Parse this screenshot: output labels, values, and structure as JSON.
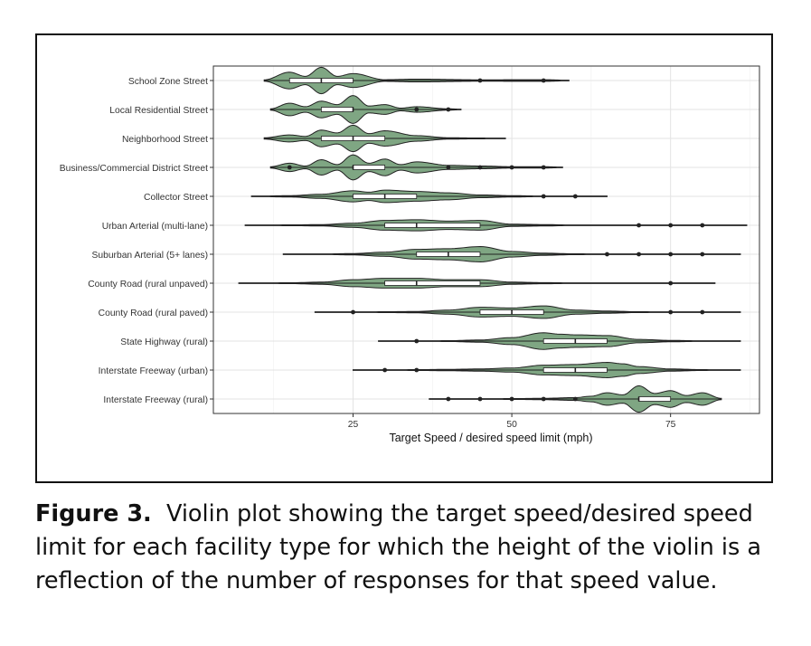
{
  "chart_data": {
    "type": "violin",
    "orientation": "horizontal",
    "xlabel": "Target Speed / desired speed limit (mph)",
    "ylabel": "",
    "xlim": [
      3,
      89
    ],
    "xticks": [
      25,
      50,
      75
    ],
    "grid": true,
    "violin_fill": "#7fa683",
    "categories": [
      {
        "name": "School Zone Street",
        "range": [
          11,
          59
        ],
        "q1": 15,
        "median": 20,
        "q3": 25,
        "density": [
          [
            11,
            0.05
          ],
          [
            15,
            0.6
          ],
          [
            17.5,
            0.3
          ],
          [
            20,
            0.95
          ],
          [
            22.5,
            0.3
          ],
          [
            25,
            0.5
          ],
          [
            30,
            0.06
          ],
          [
            35,
            0.1
          ],
          [
            45,
            0.05
          ],
          [
            55,
            0.06
          ],
          [
            59,
            0.02
          ]
        ],
        "outliers": [
          45,
          55
        ]
      },
      {
        "name": "Local Residential Street",
        "range": [
          12,
          42
        ],
        "q1": 20,
        "median": 25,
        "q3": 25,
        "density": [
          [
            12,
            0.05
          ],
          [
            15,
            0.45
          ],
          [
            17.5,
            0.2
          ],
          [
            20,
            0.6
          ],
          [
            22.5,
            0.35
          ],
          [
            25,
            1.0
          ],
          [
            27.5,
            0.25
          ],
          [
            30,
            0.35
          ],
          [
            32.5,
            0.1
          ],
          [
            35,
            0.2
          ],
          [
            40,
            0.05
          ],
          [
            42,
            0.02
          ]
        ],
        "outliers": [
          35,
          40
        ]
      },
      {
        "name": "Neighborhood Street",
        "range": [
          11,
          49
        ],
        "q1": 20,
        "median": 25,
        "q3": 30,
        "density": [
          [
            11,
            0.05
          ],
          [
            15,
            0.25
          ],
          [
            17.5,
            0.15
          ],
          [
            20,
            0.6
          ],
          [
            22.5,
            0.4
          ],
          [
            25,
            0.95
          ],
          [
            27.5,
            0.35
          ],
          [
            30,
            0.55
          ],
          [
            35,
            0.2
          ],
          [
            40,
            0.05
          ],
          [
            45,
            0.03
          ],
          [
            49,
            0.01
          ]
        ],
        "outliers": []
      },
      {
        "name": "Business/Commercial District Street",
        "range": [
          12,
          58
        ],
        "q1": 25,
        "median": 25,
        "q3": 30,
        "density": [
          [
            12,
            0.05
          ],
          [
            15,
            0.3
          ],
          [
            17.5,
            0.1
          ],
          [
            20,
            0.55
          ],
          [
            22.5,
            0.2
          ],
          [
            25,
            0.9
          ],
          [
            27.5,
            0.3
          ],
          [
            30,
            0.6
          ],
          [
            32.5,
            0.2
          ],
          [
            35,
            0.4
          ],
          [
            40,
            0.15
          ],
          [
            45,
            0.1
          ],
          [
            50,
            0.05
          ],
          [
            55,
            0.05
          ],
          [
            58,
            0.02
          ]
        ],
        "outliers": [
          15,
          40,
          45,
          50,
          55
        ]
      },
      {
        "name": "Collector Street",
        "range": [
          9,
          65
        ],
        "q1": 25,
        "median": 30,
        "q3": 35,
        "density": [
          [
            9,
            0.01
          ],
          [
            15,
            0.05
          ],
          [
            20,
            0.15
          ],
          [
            25,
            0.4
          ],
          [
            27.5,
            0.3
          ],
          [
            30,
            0.45
          ],
          [
            35,
            0.35
          ],
          [
            40,
            0.25
          ],
          [
            45,
            0.1
          ],
          [
            50,
            0.05
          ],
          [
            55,
            0.02
          ],
          [
            60,
            0.02
          ],
          [
            65,
            0.01
          ]
        ],
        "outliers": [
          55,
          60
        ]
      },
      {
        "name": "Urban Arterial (multi-lane)",
        "range": [
          8,
          87
        ],
        "q1": 30,
        "median": 35,
        "q3": 45,
        "density": [
          [
            8,
            0.01
          ],
          [
            15,
            0.03
          ],
          [
            20,
            0.05
          ],
          [
            25,
            0.15
          ],
          [
            30,
            0.35
          ],
          [
            35,
            0.4
          ],
          [
            40,
            0.3
          ],
          [
            45,
            0.35
          ],
          [
            50,
            0.08
          ],
          [
            55,
            0.05
          ],
          [
            60,
            0.02
          ],
          [
            70,
            0.01
          ],
          [
            80,
            0.01
          ],
          [
            87,
            0.005
          ]
        ],
        "outliers": [
          70,
          75,
          80
        ]
      },
      {
        "name": "Suburban Arterial (5+ lanes)",
        "range": [
          14,
          86
        ],
        "q1": 35,
        "median": 40,
        "q3": 45,
        "density": [
          [
            14,
            0.01
          ],
          [
            20,
            0.02
          ],
          [
            25,
            0.05
          ],
          [
            30,
            0.15
          ],
          [
            35,
            0.35
          ],
          [
            40,
            0.4
          ],
          [
            45,
            0.55
          ],
          [
            50,
            0.2
          ],
          [
            55,
            0.08
          ],
          [
            60,
            0.03
          ],
          [
            65,
            0.02
          ],
          [
            70,
            0.01
          ],
          [
            75,
            0.01
          ],
          [
            80,
            0.01
          ],
          [
            86,
            0.005
          ]
        ],
        "outliers": [
          65,
          70,
          75,
          80
        ]
      },
      {
        "name": "County Road (rural unpaved)",
        "range": [
          7,
          82
        ],
        "q1": 30,
        "median": 35,
        "q3": 45,
        "density": [
          [
            7,
            0.01
          ],
          [
            15,
            0.03
          ],
          [
            20,
            0.08
          ],
          [
            25,
            0.25
          ],
          [
            30,
            0.35
          ],
          [
            35,
            0.35
          ],
          [
            40,
            0.25
          ],
          [
            45,
            0.25
          ],
          [
            50,
            0.08
          ],
          [
            55,
            0.04
          ],
          [
            60,
            0.02
          ],
          [
            70,
            0.01
          ],
          [
            75,
            0.01
          ],
          [
            82,
            0.005
          ]
        ],
        "outliers": [
          75
        ]
      },
      {
        "name": "County Road (rural paved)",
        "range": [
          19,
          86
        ],
        "q1": 45,
        "median": 50,
        "q3": 55,
        "density": [
          [
            19,
            0.01
          ],
          [
            25,
            0.02
          ],
          [
            30,
            0.03
          ],
          [
            35,
            0.05
          ],
          [
            40,
            0.15
          ],
          [
            45,
            0.35
          ],
          [
            50,
            0.3
          ],
          [
            55,
            0.45
          ],
          [
            60,
            0.15
          ],
          [
            65,
            0.08
          ],
          [
            70,
            0.03
          ],
          [
            75,
            0.02
          ],
          [
            80,
            0.01
          ],
          [
            86,
            0.005
          ]
        ],
        "outliers": [
          25,
          75,
          80
        ]
      },
      {
        "name": "State Highway (rural)",
        "range": [
          29,
          86
        ],
        "q1": 55,
        "median": 60,
        "q3": 65,
        "density": [
          [
            29,
            0.01
          ],
          [
            35,
            0.02
          ],
          [
            40,
            0.03
          ],
          [
            45,
            0.08
          ],
          [
            50,
            0.25
          ],
          [
            55,
            0.6
          ],
          [
            57.5,
            0.5
          ],
          [
            60,
            0.45
          ],
          [
            65,
            0.4
          ],
          [
            70,
            0.12
          ],
          [
            75,
            0.05
          ],
          [
            80,
            0.02
          ],
          [
            86,
            0.005
          ]
        ],
        "outliers": [
          35
        ]
      },
      {
        "name": "Interstate Freeway (urban)",
        "range": [
          25,
          86
        ],
        "q1": 55,
        "median": 60,
        "q3": 65,
        "density": [
          [
            25,
            0.01
          ],
          [
            30,
            0.02
          ],
          [
            35,
            0.03
          ],
          [
            40,
            0.05
          ],
          [
            45,
            0.08
          ],
          [
            50,
            0.15
          ],
          [
            55,
            0.35
          ],
          [
            60,
            0.4
          ],
          [
            65,
            0.55
          ],
          [
            67.5,
            0.45
          ],
          [
            70,
            0.25
          ],
          [
            75,
            0.08
          ],
          [
            80,
            0.03
          ],
          [
            86,
            0.005
          ]
        ],
        "outliers": [
          30,
          35
        ]
      },
      {
        "name": "Interstate Freeway (rural)",
        "range": [
          37,
          83
        ],
        "q1": 70,
        "median": 70,
        "q3": 75,
        "density": [
          [
            37,
            0.01
          ],
          [
            45,
            0.02
          ],
          [
            50,
            0.03
          ],
          [
            55,
            0.05
          ],
          [
            60,
            0.1
          ],
          [
            62.5,
            0.2
          ],
          [
            65,
            0.45
          ],
          [
            67.5,
            0.3
          ],
          [
            70,
            0.95
          ],
          [
            72.5,
            0.4
          ],
          [
            75,
            0.6
          ],
          [
            77.5,
            0.25
          ],
          [
            80,
            0.45
          ],
          [
            83,
            0.05
          ]
        ],
        "outliers": [
          40,
          45,
          50,
          55,
          60
        ]
      }
    ]
  },
  "caption": {
    "label": "Figure 3.",
    "text": "Violin plot showing the target speed/desired speed limit for each facility type for which the height of the violin is a reflection of the number of responses for that speed value."
  }
}
